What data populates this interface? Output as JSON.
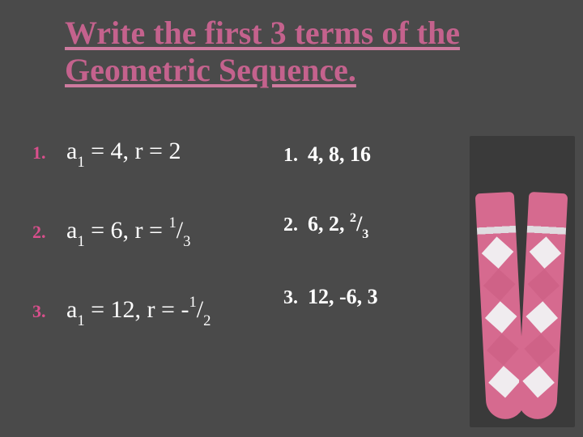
{
  "title": "Write the first 3 terms of the Geometric Sequence.",
  "title_color_dark": "#2a2a2a",
  "title_color_accent": "#d94f8c",
  "title_fontsize": 40,
  "background_color": "#4a4a4a",
  "accent_color": "#d94f8c",
  "text_color": "#ffffff",
  "problems": [
    {
      "num": "1.",
      "a1": "4",
      "r": "2",
      "r_numer": "",
      "r_denom": "",
      "r_neg": false
    },
    {
      "num": "2.",
      "a1": "6",
      "r": "",
      "r_numer": "1",
      "r_denom": "3",
      "r_neg": false
    },
    {
      "num": "3.",
      "a1": "12",
      "r": "",
      "r_numer": "1",
      "r_denom": "2",
      "r_neg": true
    }
  ],
  "answers": [
    {
      "num": "1.",
      "text": "4, 8, 16",
      "frac_numer": "",
      "frac_denom": ""
    },
    {
      "num": "2.",
      "text": "6, 2, ",
      "frac_numer": "2",
      "frac_denom": "3"
    },
    {
      "num": "3.",
      "text": "12, -6, 3",
      "frac_numer": "",
      "frac_denom": ""
    }
  ],
  "decorative_image": {
    "description": "pink argyle knee socks",
    "primary_color": "#d66a8f",
    "diamond_color": "#f0ecef",
    "background": "#3a3a3a"
  }
}
